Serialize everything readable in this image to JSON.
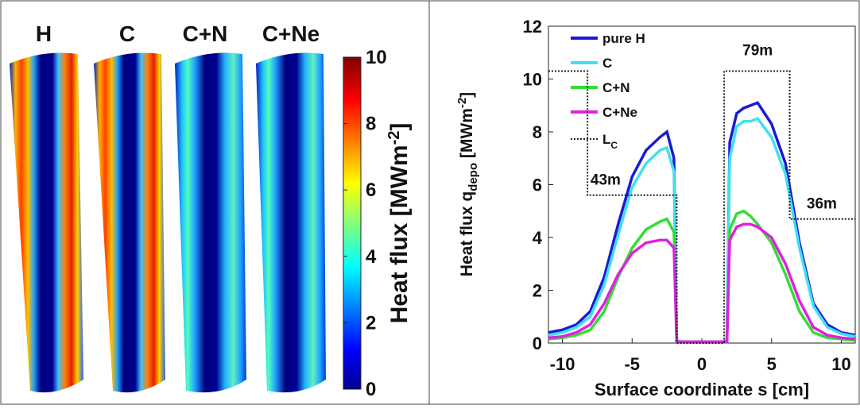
{
  "heatmap_panel": {
    "labels": [
      "H",
      "C",
      "C+N",
      "C+Ne"
    ],
    "colorbar": {
      "label": "Heat flux [MWm",
      "label_sup": "-2",
      "label_end": "]",
      "lim": [
        0,
        10
      ],
      "ticks": [
        0,
        2,
        4,
        6,
        8,
        10
      ]
    }
  },
  "chart_data": {
    "type": "line",
    "xlabel": "Surface coordinate s [cm]",
    "ylabel": "Heat flux q",
    "ylabel_sub": "depo",
    "ylabel_mid": " [MWm",
    "ylabel_sup": "-2",
    "ylabel_end": "]",
    "xlim": [
      -11,
      11
    ],
    "ylim": [
      0,
      12
    ],
    "xticks": [
      -10,
      -5,
      0,
      5,
      10
    ],
    "yticks": [
      0,
      2,
      4,
      6,
      8,
      10,
      12
    ],
    "x": [
      -11,
      -10,
      -9,
      -8,
      -7,
      -6,
      -5,
      -4,
      -3,
      -2.5,
      -2,
      -1.8,
      -1.5,
      0,
      1.5,
      1.8,
      2,
      2.5,
      3,
      3.5,
      4,
      5,
      6,
      7,
      8,
      9,
      10,
      11
    ],
    "series": [
      {
        "name": "pure H",
        "color": "#1a1ad6",
        "values": [
          0.4,
          0.5,
          0.7,
          1.2,
          2.5,
          4.5,
          6.3,
          7.3,
          7.8,
          8.0,
          7.0,
          0.1,
          0.05,
          0.05,
          0.05,
          0.1,
          7.6,
          8.7,
          8.9,
          9.0,
          9.1,
          8.3,
          6.8,
          3.8,
          1.5,
          0.7,
          0.4,
          0.3
        ]
      },
      {
        "name": "C",
        "color": "#40e0f0",
        "values": [
          0.3,
          0.4,
          0.6,
          1.0,
          2.2,
          4.1,
          5.9,
          6.8,
          7.3,
          7.4,
          6.5,
          0.1,
          0.05,
          0.05,
          0.05,
          0.1,
          7.0,
          8.2,
          8.4,
          8.4,
          8.5,
          7.8,
          6.4,
          3.6,
          1.4,
          0.6,
          0.35,
          0.25
        ]
      },
      {
        "name": "C+N",
        "color": "#33dd33",
        "values": [
          0.15,
          0.2,
          0.3,
          0.5,
          1.2,
          2.5,
          3.6,
          4.3,
          4.6,
          4.7,
          4.2,
          0.05,
          0.05,
          0.05,
          0.05,
          0.05,
          4.3,
          4.9,
          5.0,
          4.8,
          4.5,
          3.8,
          2.6,
          1.2,
          0.4,
          0.2,
          0.15,
          0.1
        ]
      },
      {
        "name": "C+Ne",
        "color": "#e020e0",
        "values": [
          0.2,
          0.25,
          0.4,
          0.7,
          1.5,
          2.6,
          3.4,
          3.8,
          3.9,
          3.9,
          3.6,
          0.05,
          0.05,
          0.05,
          0.05,
          0.05,
          3.9,
          4.4,
          4.5,
          4.5,
          4.4,
          4.0,
          3.0,
          1.6,
          0.6,
          0.3,
          0.2,
          0.15
        ]
      },
      {
        "name": "L",
        "subscript": "C",
        "color": "#222222",
        "dotted": true,
        "x": [
          -11,
          -8.2,
          -8.2,
          -1.8,
          -1.8,
          1.6,
          1.6,
          6.3,
          6.3,
          11
        ],
        "values": [
          10.3,
          10.3,
          5.6,
          5.6,
          0,
          0,
          10.3,
          10.3,
          4.7,
          4.7
        ]
      }
    ],
    "annotations": [
      {
        "text": "43m",
        "x": -6.9,
        "y": 6.0
      },
      {
        "text": "79m",
        "x": 4.0,
        "y": 10.9
      },
      {
        "text": "36m",
        "x": 8.6,
        "y": 5.1
      }
    ]
  }
}
